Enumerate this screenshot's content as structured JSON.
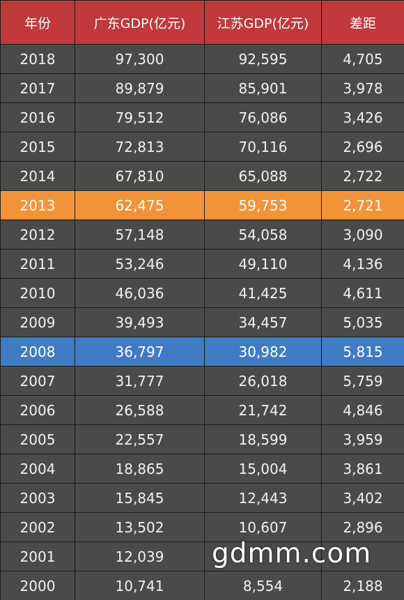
{
  "table": {
    "headers": [
      "年份",
      "广东GDP(亿元)",
      "江苏GDP(亿元)",
      "差距"
    ],
    "rows": [
      {
        "year": "2018",
        "guangdong": "97,300",
        "jiangsu": "92,595",
        "gap": "4,705",
        "highlight": ""
      },
      {
        "year": "2017",
        "guangdong": "89,879",
        "jiangsu": "85,901",
        "gap": "3,978",
        "highlight": ""
      },
      {
        "year": "2016",
        "guangdong": "79,512",
        "jiangsu": "76,086",
        "gap": "3,426",
        "highlight": ""
      },
      {
        "year": "2015",
        "guangdong": "72,813",
        "jiangsu": "70,116",
        "gap": "2,696",
        "highlight": ""
      },
      {
        "year": "2014",
        "guangdong": "67,810",
        "jiangsu": "65,088",
        "gap": "2,722",
        "highlight": ""
      },
      {
        "year": "2013",
        "guangdong": "62,475",
        "jiangsu": "59,753",
        "gap": "2,721",
        "highlight": "orange"
      },
      {
        "year": "2012",
        "guangdong": "57,148",
        "jiangsu": "54,058",
        "gap": "3,090",
        "highlight": ""
      },
      {
        "year": "2011",
        "guangdong": "53,246",
        "jiangsu": "49,110",
        "gap": "4,136",
        "highlight": ""
      },
      {
        "year": "2010",
        "guangdong": "46,036",
        "jiangsu": "41,425",
        "gap": "4,611",
        "highlight": ""
      },
      {
        "year": "2009",
        "guangdong": "39,493",
        "jiangsu": "34,457",
        "gap": "5,035",
        "highlight": ""
      },
      {
        "year": "2008",
        "guangdong": "36,797",
        "jiangsu": "30,982",
        "gap": "5,815",
        "highlight": "blue"
      },
      {
        "year": "2007",
        "guangdong": "31,777",
        "jiangsu": "26,018",
        "gap": "5,759",
        "highlight": ""
      },
      {
        "year": "2006",
        "guangdong": "26,588",
        "jiangsu": "21,742",
        "gap": "4,846",
        "highlight": ""
      },
      {
        "year": "2005",
        "guangdong": "22,557",
        "jiangsu": "18,599",
        "gap": "3,959",
        "highlight": ""
      },
      {
        "year": "2004",
        "guangdong": "18,865",
        "jiangsu": "15,004",
        "gap": "3,861",
        "highlight": ""
      },
      {
        "year": "2003",
        "guangdong": "15,845",
        "jiangsu": "12,443",
        "gap": "3,402",
        "highlight": ""
      },
      {
        "year": "2002",
        "guangdong": "13,502",
        "jiangsu": "10,607",
        "gap": "2,896",
        "highlight": ""
      },
      {
        "year": "2001",
        "guangdong": "12,039",
        "jiangsu": "",
        "gap": "",
        "highlight": ""
      },
      {
        "year": "2000",
        "guangdong": "10,741",
        "jiangsu": "8,554",
        "gap": "2,188",
        "highlight": ""
      }
    ]
  },
  "watermark": {
    "text": "gdmm.com"
  },
  "colors": {
    "header_bg": "#c0393b",
    "row_bg": "#494b48",
    "highlight_orange": "#f2933a",
    "highlight_blue": "#3f7cc4"
  }
}
